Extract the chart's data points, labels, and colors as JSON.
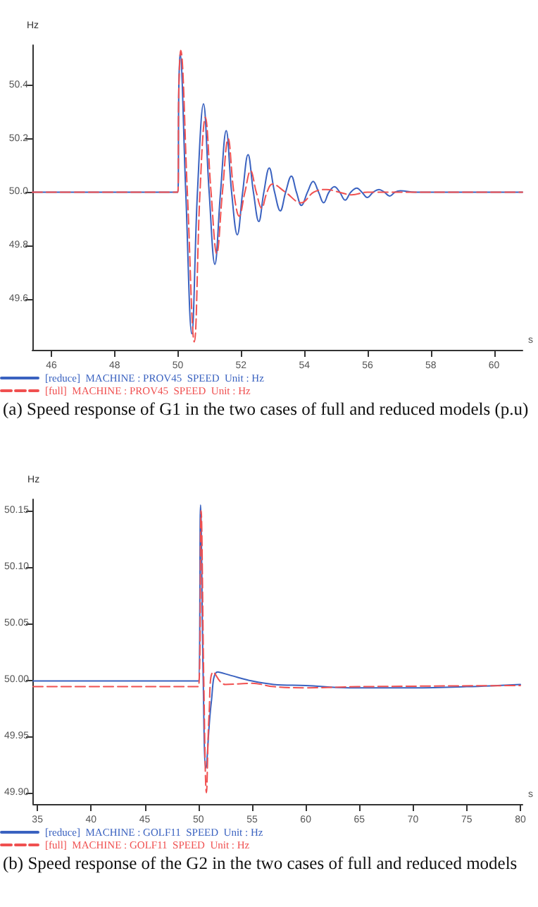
{
  "chart_data": [
    {
      "type": "line",
      "xlabel": "s",
      "ylabel": "Hz",
      "annotations": [
        "(a) Speed response of G1 in the two cases of full and reduced models (p.u)"
      ],
      "xlim": [
        45.4,
        60.9
      ],
      "ylim": [
        49.41,
        50.55
      ],
      "xticks": [
        46,
        48,
        50,
        52,
        54,
        56,
        58,
        60
      ],
      "yticks": [
        49.6,
        49.8,
        {
          "value": 50,
          "label": "50.0"
        },
        50.2,
        50.4
      ],
      "grid": false,
      "legend": "bottom left",
      "marker": "none",
      "series": [
        {
          "name": "[reduce]  MACHINE : PROV45  SPEED  Unit : Hz",
          "color": "#3a62c0",
          "line_style": "solid",
          "x": [
            45.4,
            50.0,
            50.03,
            50.07,
            50.25,
            50.44,
            50.62,
            50.81,
            50.99,
            51.17,
            51.35,
            51.53,
            51.7,
            51.88,
            52.05,
            52.22,
            52.39,
            52.56,
            52.72,
            52.89,
            53.06,
            53.24,
            53.41,
            53.59,
            53.75,
            53.91,
            54.1,
            54.28,
            54.45,
            54.61,
            54.78,
            54.95,
            55.12,
            55.29,
            55.47,
            55.66,
            55.82,
            55.99,
            56.18,
            56.36,
            56.53,
            56.7,
            56.87,
            57.04,
            57.5,
            60.9
          ],
          "values": [
            50.0,
            50.0,
            50.38,
            50.52,
            50.0,
            49.47,
            50.0,
            50.33,
            50.0,
            49.73,
            50.0,
            50.23,
            50.0,
            49.84,
            50.0,
            50.14,
            50.0,
            49.89,
            50.0,
            50.09,
            50.0,
            49.93,
            50.0,
            50.06,
            50.0,
            49.95,
            50.0,
            50.04,
            50.0,
            49.96,
            50.0,
            50.02,
            50.0,
            49.97,
            50.0,
            50.015,
            50.0,
            49.98,
            50.0,
            50.01,
            50.0,
            49.985,
            50.0,
            50.005,
            50.0,
            50.0
          ]
        },
        {
          "name": "[full]  MACHINE : PROV45  SPEED  Unit : Hz",
          "color": "#f05050",
          "line_style": "dashed",
          "x": [
            45.4,
            50.0,
            50.03,
            50.09,
            50.3,
            50.52,
            50.7,
            50.87,
            51.05,
            51.23,
            51.41,
            51.59,
            51.77,
            51.94,
            52.12,
            52.3,
            52.48,
            52.65,
            52.82,
            52.99,
            53.4,
            53.9,
            54.3,
            54.7,
            55.1,
            55.5,
            56.0,
            60.9
          ],
          "values": [
            50.0,
            50.0,
            50.38,
            50.53,
            50.0,
            49.44,
            50.0,
            50.28,
            50.0,
            49.77,
            50.0,
            50.2,
            50.0,
            49.91,
            50.0,
            50.08,
            50.0,
            49.94,
            50.0,
            50.03,
            50.0,
            49.96,
            50.0,
            50.01,
            50.0,
            49.99,
            50.0,
            50.0
          ]
        }
      ]
    },
    {
      "type": "line",
      "xlabel": "s",
      "ylabel": "Hz",
      "annotations": [
        "(b) Speed response of the G2 in the two cases of full and reduced models"
      ],
      "xlim": [
        34.6,
        80.2
      ],
      "ylim": [
        49.89,
        50.16
      ],
      "xticks": [
        35,
        40,
        45,
        50,
        55,
        60,
        65,
        70,
        75,
        80
      ],
      "yticks": [
        {
          "value": 49.9,
          "label": "49.90"
        },
        49.95,
        {
          "value": 50,
          "label": "50.00"
        },
        50.05,
        {
          "value": 50.1,
          "label": "50.10"
        },
        50.15
      ],
      "grid": false,
      "legend": "bottom left",
      "marker": "none",
      "series": [
        {
          "name": "[reduce]  MACHINE : GOLF11  SPEED  Unit : Hz",
          "color": "#3a62c0",
          "line_style": "solid",
          "x": [
            34.6,
            50.0,
            50.2,
            50.45,
            50.7,
            51.2,
            51.8,
            53.0,
            55.0,
            57.0,
            60.0,
            64.0,
            70.0,
            75.0,
            80.0
          ],
          "values": [
            49.999,
            49.999,
            50.155,
            50.0,
            49.922,
            49.98,
            50.007,
            50.004,
            49.999,
            49.996,
            49.995,
            49.993,
            49.993,
            49.994,
            49.996
          ]
        },
        {
          "name": "[full]  MACHINE : GOLF11  SPEED  Unit : Hz",
          "color": "#f05050",
          "line_style": "dashed",
          "x": [
            34.6,
            50.0,
            50.25,
            50.5,
            50.75,
            51.0,
            51.4,
            52.5,
            55.0,
            57.0,
            60.0,
            65.0,
            80.0
          ],
          "values": [
            49.994,
            49.994,
            50.15,
            50.0,
            49.9,
            49.97,
            50.007,
            49.996,
            49.997,
            49.994,
            49.993,
            49.994,
            49.995
          ]
        }
      ]
    }
  ]
}
